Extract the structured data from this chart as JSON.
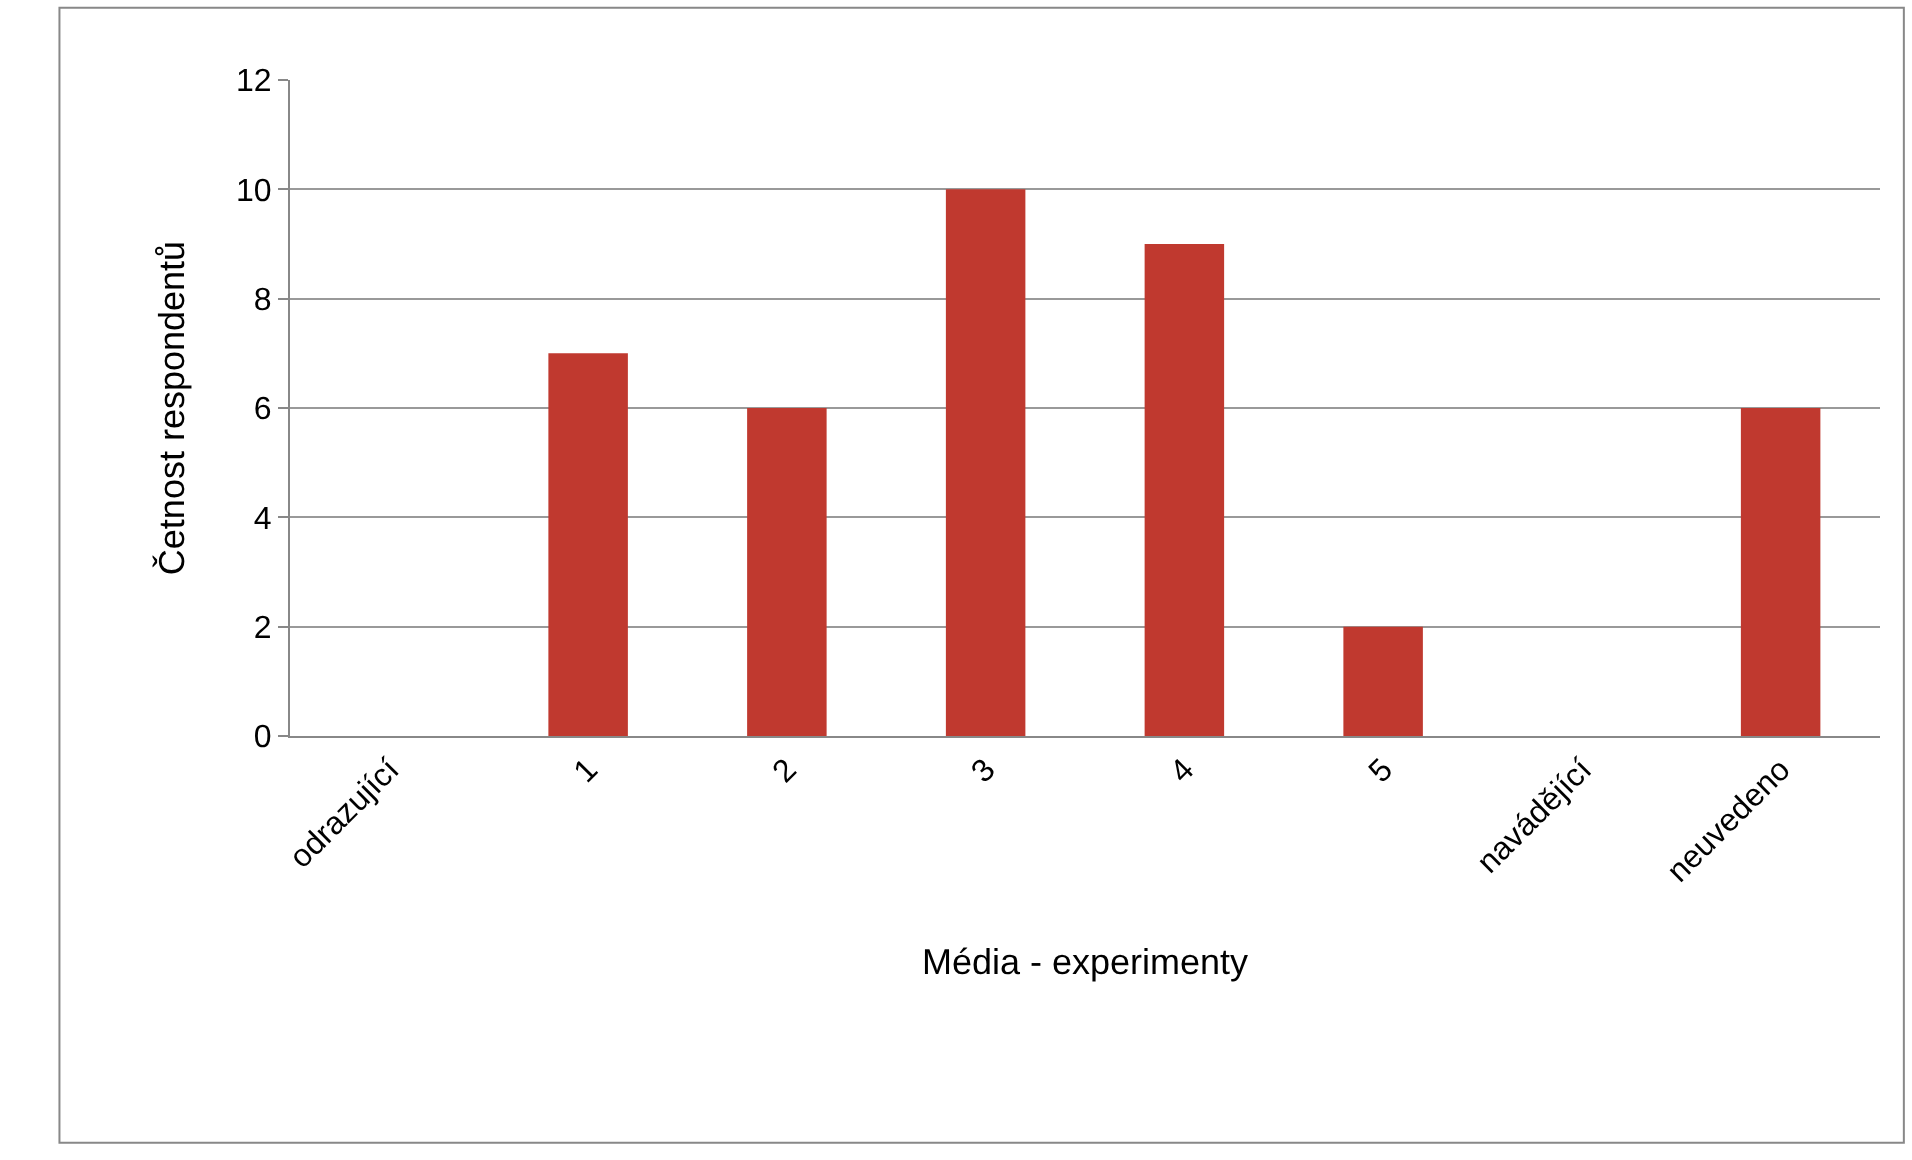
{
  "chart_data": {
    "type": "bar",
    "xlabel": "Média - experimenty",
    "ylabel": "Četnost respondentů",
    "categories": [
      "odrazující",
      "1",
      "2",
      "3",
      "4",
      "5",
      "navádějící",
      "neuvedeno"
    ],
    "values": [
      0,
      7,
      6,
      10,
      9,
      2,
      0,
      6
    ],
    "color": "#c0392f",
    "ylim": [
      0,
      12
    ],
    "yticks": [
      0,
      2,
      4,
      6,
      8,
      10,
      12
    ],
    "grid": "y"
  }
}
